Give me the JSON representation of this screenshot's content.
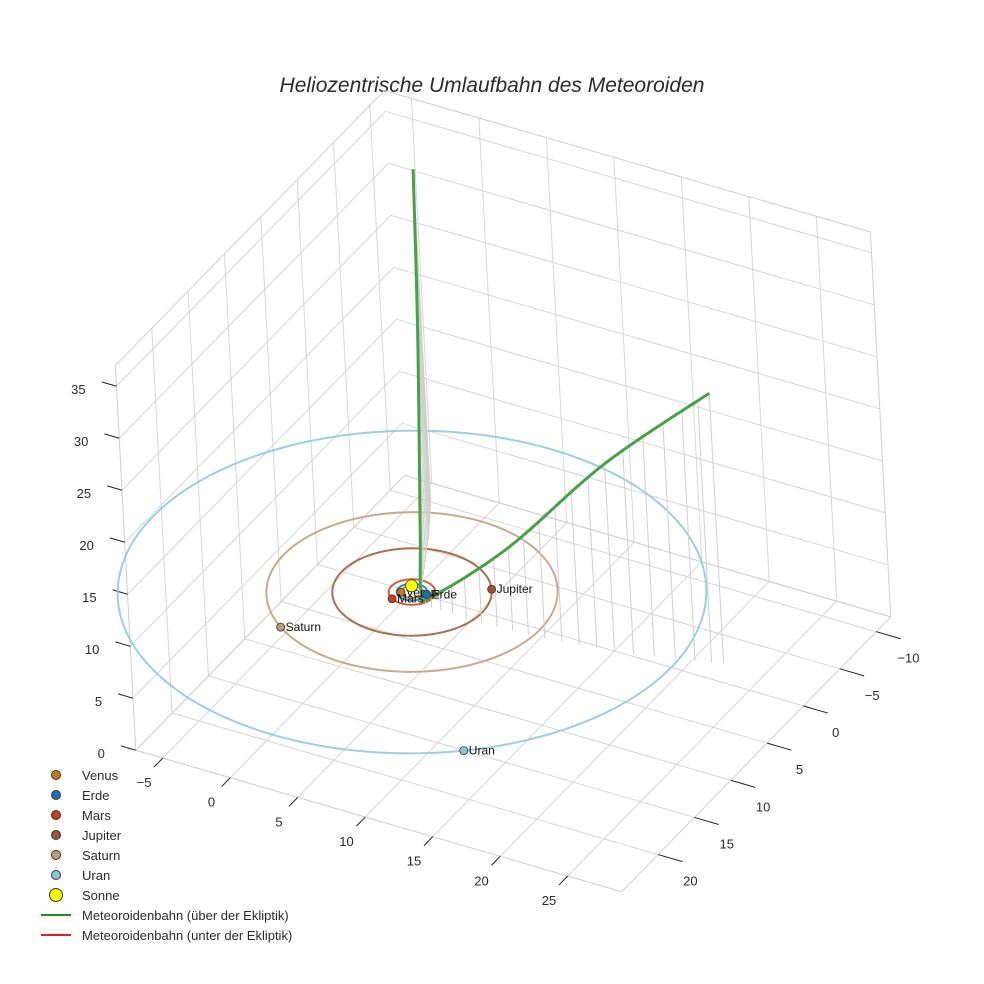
{
  "title": "Heliozentrische Umlaufbahn des Meteoroiden",
  "legend": [
    {
      "label": "Venus",
      "type": "marker",
      "color": "#c07a1a"
    },
    {
      "label": "Erde",
      "type": "marker",
      "color": "#1f6fb4"
    },
    {
      "label": "Mars",
      "type": "marker",
      "color": "#c9401c"
    },
    {
      "label": "Jupiter",
      "type": "marker",
      "color": "#9e5534"
    },
    {
      "label": "Saturn",
      "type": "marker",
      "color": "#c09a78"
    },
    {
      "label": "Uran",
      "type": "marker",
      "color": "#8cc7d6"
    },
    {
      "label": "Sonne",
      "type": "sun",
      "color": "#ffff00"
    },
    {
      "label": "Meteoroidenbahn (über der Ekliptik)",
      "type": "line",
      "color": "#1a8a1a"
    },
    {
      "label": "Meteoroidenbahn (unter der Ekliptik)",
      "type": "line",
      "color": "#e02020"
    }
  ],
  "axes": {
    "x_ticks": [
      "−5",
      "0",
      "5",
      "10",
      "15",
      "20",
      "25"
    ],
    "y_ticks": [
      "−10",
      "−5",
      "0",
      "5",
      "10",
      "15",
      "20"
    ],
    "z_ticks": [
      "0",
      "5",
      "10",
      "15",
      "20",
      "25",
      "30",
      "35"
    ]
  },
  "planet_labels": {
    "venus": "Venus",
    "erde": "Erde",
    "mars": "Mars",
    "jupiter": "Jupiter",
    "saturn": "Saturn",
    "uran": "Uran"
  },
  "chart_data": {
    "type": "scatter3d",
    "title": "Heliozentrische Umlaufbahn des Meteoroiden",
    "xlabel": "",
    "ylabel": "",
    "zlabel": "",
    "xlim": [
      -7,
      29
    ],
    "ylim": [
      -12,
      25
    ],
    "zlim": [
      0,
      37
    ],
    "grid": true,
    "legend_position": "bottom-left",
    "planets": [
      {
        "name": "Venus",
        "orbit_radius_au": 0.72,
        "color": "#c07a1a"
      },
      {
        "name": "Erde",
        "orbit_radius_au": 1.0,
        "color": "#1f6fb4"
      },
      {
        "name": "Mars",
        "orbit_radius_au": 1.52,
        "color": "#c9401c"
      },
      {
        "name": "Jupiter",
        "orbit_radius_au": 5.2,
        "color": "#9e5534"
      },
      {
        "name": "Saturn",
        "orbit_radius_au": 9.5,
        "color": "#c09a78"
      },
      {
        "name": "Uran",
        "orbit_radius_au": 19.2,
        "color": "#8cc7d6"
      },
      {
        "name": "Sonne",
        "position": [
          0,
          0,
          0
        ],
        "color": "#ffff00"
      }
    ],
    "series": [
      {
        "name": "Meteoroidenbahn (über der Ekliptik)",
        "color": "#1a8a1a",
        "points_approx": [
          [
            -4,
            -10,
            32
          ],
          [
            -2,
            -6,
            20
          ],
          [
            0,
            -1.5,
            5
          ],
          [
            0.8,
            0.2,
            0.5
          ],
          [
            2,
            1,
            1
          ],
          [
            8,
            1,
            8
          ],
          [
            15,
            0,
            18
          ],
          [
            22,
            -2,
            26
          ]
        ]
      },
      {
        "name": "Meteoroidenbahn (unter der Ekliptik)",
        "color": "#e02020",
        "points_approx": []
      }
    ]
  }
}
